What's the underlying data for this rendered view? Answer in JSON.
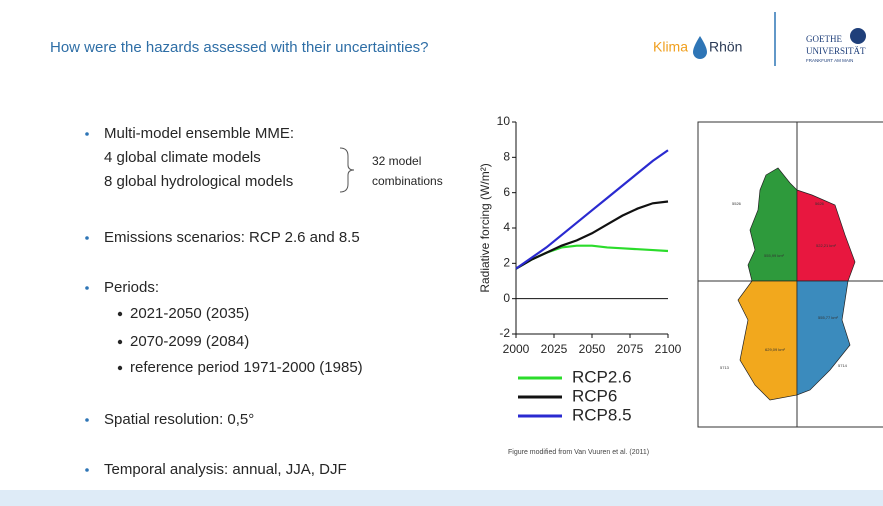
{
  "header": {
    "title": "How were the hazards assessed with their uncertainties?",
    "logo_klima": "Klima",
    "logo_rhon": "Rhön",
    "goethe": "GOETHE",
    "universitat": "UNIVERSITÄT",
    "frankfurt": "FRANKFURT AM MAIN"
  },
  "bullets": [
    {
      "text": "Multi-model ensemble MME:",
      "lines": [
        "4 global climate models",
        "8 global hydrological models"
      ],
      "bracket": [
        "32 model",
        "combinations"
      ]
    },
    {
      "text": "Emissions scenarios: RCP 2.6 and 8.5"
    },
    {
      "text": "Periods:",
      "sub": [
        "2021-2050 (2035)",
        "2070-2099 (2084)",
        "reference period 1971-2000 (1985)"
      ]
    },
    {
      "text": "Spatial resolution: 0,5°"
    },
    {
      "text": "Temporal analysis: annual, JJA, DJF"
    }
  ],
  "chart_data": {
    "type": "line",
    "y_label": "Radiative forcing (W/m²)",
    "x": [
      2000,
      2010,
      2020,
      2030,
      2040,
      2050,
      2060,
      2070,
      2080,
      2090,
      2100
    ],
    "xlim": [
      2000,
      2100
    ],
    "xticks": [
      2000,
      2025,
      2050,
      2075,
      2100
    ],
    "ylim": [
      -2,
      10
    ],
    "yticks": [
      -2,
      0,
      2,
      4,
      6,
      8,
      10
    ],
    "series": [
      {
        "name": "RCP2.6",
        "color": "#2bdc2b",
        "values": [
          1.7,
          2.2,
          2.6,
          2.9,
          3.0,
          3.0,
          2.9,
          2.85,
          2.8,
          2.75,
          2.7
        ]
      },
      {
        "name": "RCP6",
        "color": "#111111",
        "values": [
          1.7,
          2.2,
          2.6,
          3.0,
          3.3,
          3.7,
          4.2,
          4.7,
          5.1,
          5.4,
          5.5
        ]
      },
      {
        "name": "RCP8.5",
        "color": "#2a2ad0",
        "values": [
          1.7,
          2.3,
          2.9,
          3.6,
          4.3,
          5.0,
          5.7,
          6.4,
          7.1,
          7.8,
          8.4
        ]
      }
    ]
  },
  "caption": "Figure modified  from Van Vuuren et al. (2011)",
  "map": {
    "labels": [
      "5526",
      "5626",
      "5713",
      "5714",
      "555,99 km²",
      "522,21 km²",
      "629,09 km²",
      "555,77 km²"
    ]
  }
}
